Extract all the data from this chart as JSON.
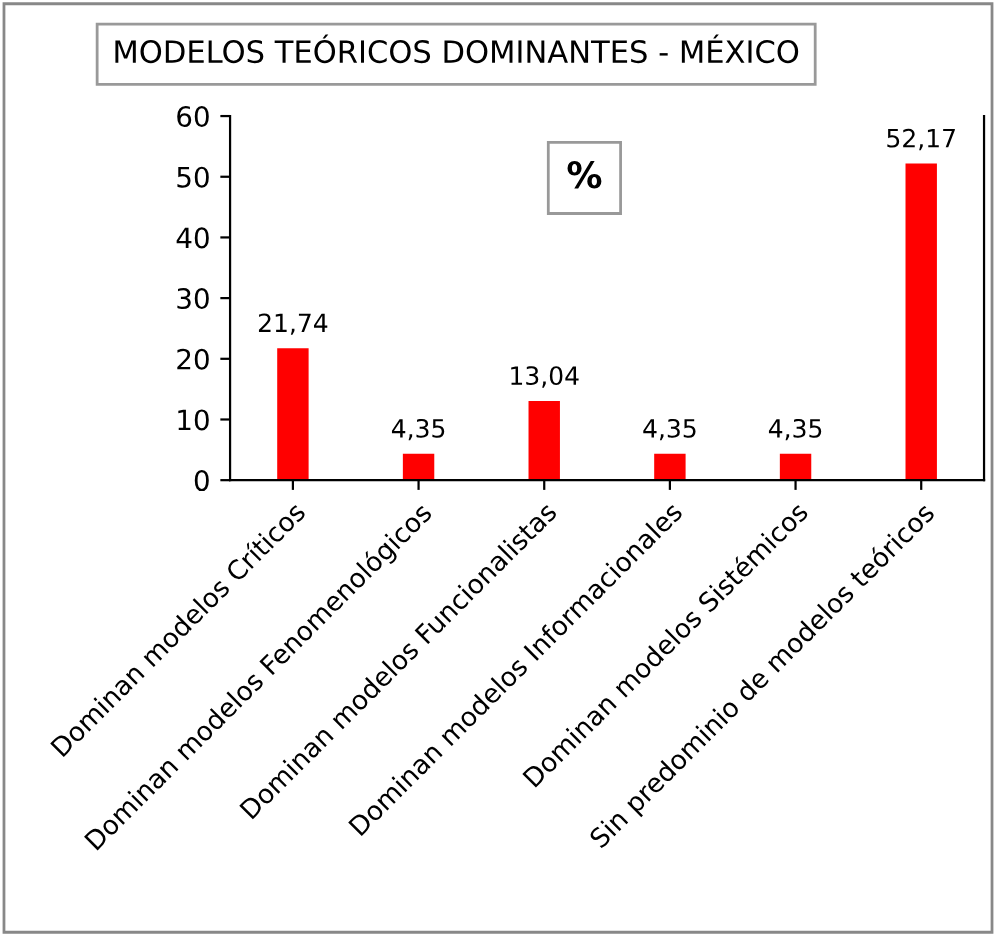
{
  "chart_data": {
    "type": "bar",
    "title": "MODELOS TEÓRICOS DOMINANTES - MÉXICO",
    "categories": [
      "Dominan modelos Críticos",
      "Dominan modelos Fenomenológicos",
      "Dominan modelos Funcionalistas",
      "Dominan modelos Informacionales",
      "Dominan modelos Sistémicos",
      "Sin predominio de modelos teóricos"
    ],
    "values": [
      21.74,
      4.35,
      13.04,
      4.35,
      4.35,
      52.17
    ],
    "value_labels": [
      "21,74",
      "4,35",
      "13,04",
      "4,35",
      "4,35",
      "52,17"
    ],
    "color": "#ff0000",
    "ylim": [
      0,
      60
    ],
    "yticks": [
      0,
      10,
      20,
      30,
      40,
      50,
      60
    ],
    "annotations": [
      "%"
    ],
    "grid": false
  }
}
